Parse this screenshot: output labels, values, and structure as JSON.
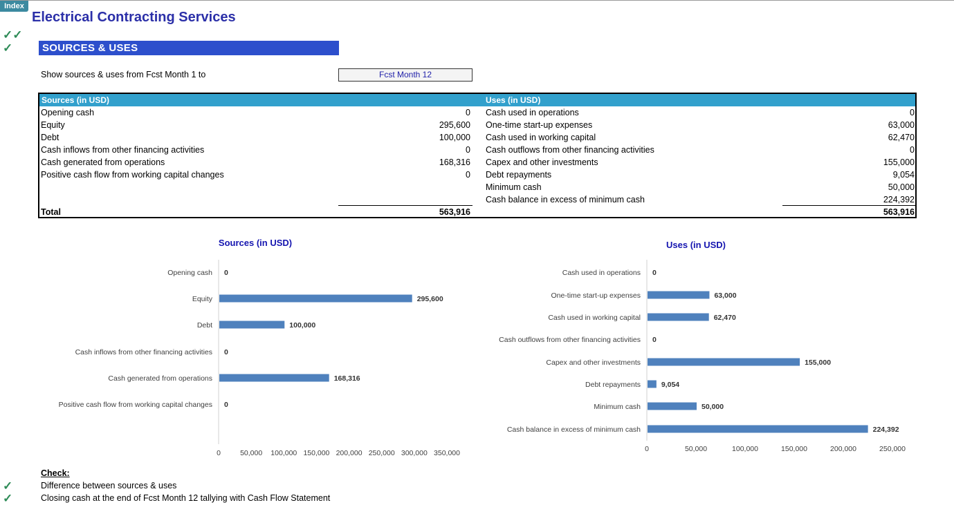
{
  "index_tab": "Index",
  "title": "Electrical Contracting Services",
  "header_checks": [
    "✓✓",
    "✓"
  ],
  "section_title": "SOURCES & USES",
  "period": {
    "label": "Show sources & uses from Fcst Month 1 to",
    "selected": "Fcst Month 12"
  },
  "table": {
    "sources_header": "Sources (in USD)",
    "uses_header": "Uses (in USD)",
    "sources": [
      {
        "label": "Opening cash",
        "value": "0"
      },
      {
        "label": "Equity",
        "value": "295,600"
      },
      {
        "label": "Debt",
        "value": "100,000"
      },
      {
        "label": "Cash inflows from other financing activities",
        "value": "0"
      },
      {
        "label": "Cash generated from operations",
        "value": "168,316"
      },
      {
        "label": "Positive cash flow from working capital changes",
        "value": "0"
      }
    ],
    "uses": [
      {
        "label": "Cash used in operations",
        "value": "0"
      },
      {
        "label": "One-time start-up expenses",
        "value": "63,000"
      },
      {
        "label": "Cash used in working capital",
        "value": "62,470"
      },
      {
        "label": "Cash outflows from other  financing activities",
        "value": "0"
      },
      {
        "label": "Capex and other investments",
        "value": "155,000"
      },
      {
        "label": "Debt repayments",
        "value": "9,054"
      },
      {
        "label": "Minimum cash",
        "value": "50,000"
      },
      {
        "label": "Cash balance in excess of minimum cash",
        "value": "224,392"
      }
    ],
    "total_label": "Total",
    "sources_total": "563,916",
    "uses_total": "563,916"
  },
  "chart_data": [
    {
      "type": "bar",
      "orientation": "horizontal",
      "title": "Sources (in USD)",
      "categories": [
        "Opening cash",
        "Equity",
        "Debt",
        "Cash inflows from other financing activities",
        "Cash generated from operations",
        "Positive cash flow from working capital changes"
      ],
      "values": [
        0,
        295600,
        100000,
        0,
        168316,
        0
      ],
      "data_labels": [
        "0",
        "295,600",
        "100,000",
        "0",
        "168,316",
        "0"
      ],
      "xlim": [
        0,
        350000
      ],
      "xticks": [
        0,
        50000,
        100000,
        150000,
        200000,
        250000,
        300000,
        350000
      ],
      "xtick_labels": [
        "0",
        "50,000",
        "100,000",
        "150,000",
        "200,000",
        "250,000",
        "300,000",
        "350,000"
      ],
      "bar_color": "#4f81bd",
      "grid": false
    },
    {
      "type": "bar",
      "orientation": "horizontal",
      "title": "Uses (in USD)",
      "categories": [
        "Cash used in operations",
        "One-time start-up expenses",
        "Cash used in working capital",
        "Cash outflows from other  financing activities",
        "Capex and other investments",
        "Debt repayments",
        "Minimum cash",
        "Cash balance in excess of minimum cash"
      ],
      "values": [
        0,
        63000,
        62470,
        0,
        155000,
        9054,
        50000,
        224392
      ],
      "data_labels": [
        "0",
        "63,000",
        "62,470",
        "0",
        "155,000",
        "9,054",
        "50,000",
        "224,392"
      ],
      "xlim": [
        0,
        250000
      ],
      "xticks": [
        0,
        50000,
        100000,
        150000,
        200000,
        250000
      ],
      "xtick_labels": [
        "0",
        "50,000",
        "100,000",
        "150,000",
        "200,000",
        "250,000"
      ],
      "bar_color": "#4f81bd",
      "grid": false
    }
  ],
  "check": {
    "title": "Check:",
    "items": [
      {
        "mark": "✓",
        "label": "Difference between sources & uses"
      },
      {
        "mark": "✓",
        "label": "Closing cash at the end of Fcst Month 12 tallying with Cash Flow Statement"
      }
    ]
  },
  "colors": {
    "title": "#2b2fa8",
    "section_bar": "#2d4fcc",
    "table_header": "#32a0cc",
    "chart_title": "#1515b0",
    "check_mark": "#2e8b57",
    "bar": "#4f81bd"
  }
}
